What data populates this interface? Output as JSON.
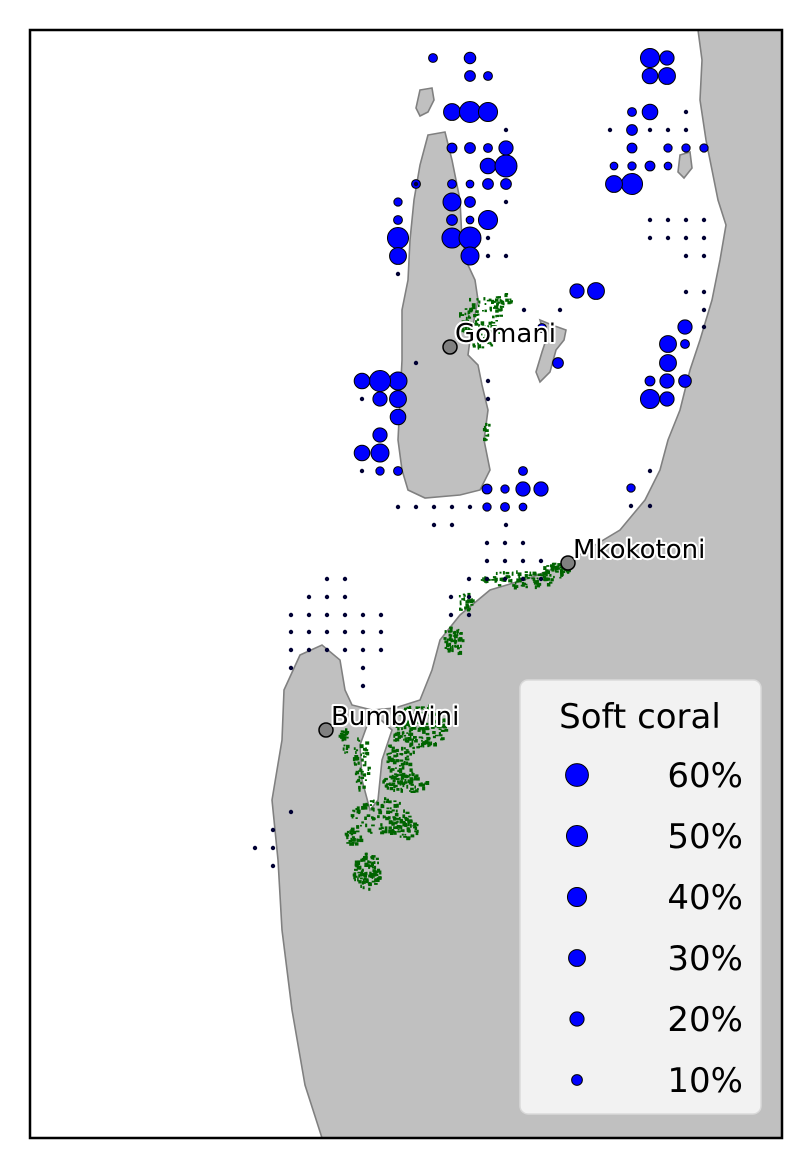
{
  "colors": {
    "land": "#c0c0c0",
    "coast": "#808080",
    "sea": "#ffffff",
    "marker": "#0000ff",
    "seagrass": "#006400",
    "place": "#808080"
  },
  "places": [
    {
      "name": "Gomani"
    },
    {
      "name": "Mkokotoni"
    },
    {
      "name": "Bumbwini"
    }
  ],
  "legend": {
    "title": "Soft coral",
    "items": [
      {
        "label": "60%",
        "value": 60
      },
      {
        "label": "50%",
        "value": 50
      },
      {
        "label": "40%",
        "value": 40
      },
      {
        "label": "30%",
        "value": 30
      },
      {
        "label": "20%",
        "value": 20
      },
      {
        "label": "10%",
        "value": 10
      }
    ]
  },
  "survey_sites": [
    {
      "value": 12
    },
    {
      "value": 6
    },
    {
      "value": 10
    },
    {
      "value": 6
    },
    {
      "value": 30
    },
    {
      "value": 50
    },
    {
      "value": 40
    },
    {
      "value": 8
    },
    {
      "value": 10
    },
    {
      "value": 6
    },
    {
      "value": 20
    },
    {
      "value": 25
    },
    {
      "value": 55
    },
    {
      "value": 20
    },
    {
      "value": 40
    },
    {
      "value": 30
    },
    {
      "value": 25
    },
    {
      "value": 6
    },
    {
      "value": 10
    },
    {
      "value": 8
    },
    {
      "value": 5
    },
    {
      "value": 4
    },
    {
      "value": 50
    },
    {
      "value": 30
    },
    {
      "value": 25
    },
    {
      "value": 5
    },
    {
      "value": 4
    },
    {
      "value": 8
    },
    {
      "value": 5
    },
    {
      "value": 5
    },
    {
      "value": 6
    },
    {
      "value": 4
    },
    {
      "value": 10
    },
    {
      "value": 10
    },
    {
      "value": 6
    },
    {
      "value": 5
    },
    {
      "value": 35
    },
    {
      "value": 10
    },
    {
      "value": 6
    },
    {
      "value": 10
    },
    {
      "value": 4
    },
    {
      "value": 40
    },
    {
      "value": 50
    },
    {
      "value": 45
    },
    {
      "value": 55
    },
    {
      "value": 30
    },
    {
      "value": 35
    },
    {
      "value": 20
    },
    {
      "value": 30
    },
    {
      "value": 6
    },
    {
      "value": 10
    },
    {
      "value": 20
    },
    {
      "value": 6
    },
    {
      "value": 30
    },
    {
      "value": 30
    },
    {
      "value": 20
    },
    {
      "value": 15
    },
    {
      "value": 8
    },
    {
      "value": 20
    },
    {
      "value": 40
    },
    {
      "value": 35
    },
    {
      "value": 50
    },
    {
      "value": 25
    },
    {
      "value": 20
    },
    {
      "value": 30
    },
    {
      "value": 25
    },
    {
      "value": 20
    },
    {
      "value": 35
    },
    {
      "value": 25
    },
    {
      "value": 5
    },
    {
      "value": 6
    },
    {
      "value": 6
    },
    {
      "value": 5
    },
    {
      "value": 20
    },
    {
      "value": 20
    },
    {
      "value": 8
    },
    {
      "value": 6
    },
    {
      "value": 4
    },
    {
      "value": 5
    },
    {
      "value": 5
    }
  ]
}
